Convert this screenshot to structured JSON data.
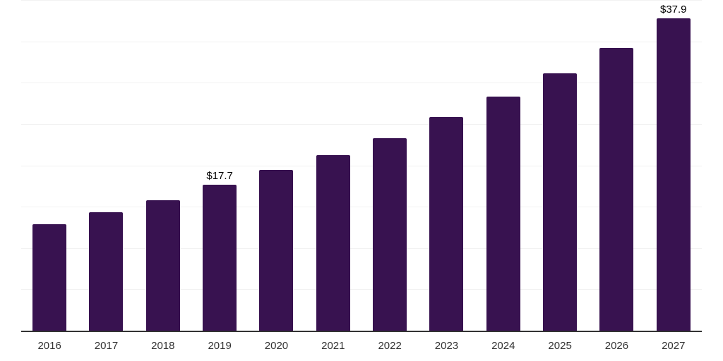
{
  "chart_data": {
    "type": "bar",
    "categories": [
      "2016",
      "2017",
      "2018",
      "2019",
      "2020",
      "2021",
      "2022",
      "2023",
      "2024",
      "2025",
      "2026",
      "2027"
    ],
    "values": [
      13.0,
      14.4,
      15.9,
      17.7,
      19.5,
      21.3,
      23.4,
      25.9,
      28.4,
      31.2,
      34.3,
      37.9
    ],
    "data_labels": {
      "2019": "$17.7",
      "2027": "$37.9"
    },
    "title": "",
    "xlabel": "",
    "ylabel": "",
    "ylim": [
      0,
      40
    ],
    "gridline_step": 5,
    "grid_on": true,
    "legend": "none",
    "colors": {
      "bar": "#381250",
      "gridline": "#f2f2f2",
      "axis_line": "#333333",
      "tick_label": "#333333",
      "data_label": "#000000",
      "background": "#ffffff"
    }
  }
}
